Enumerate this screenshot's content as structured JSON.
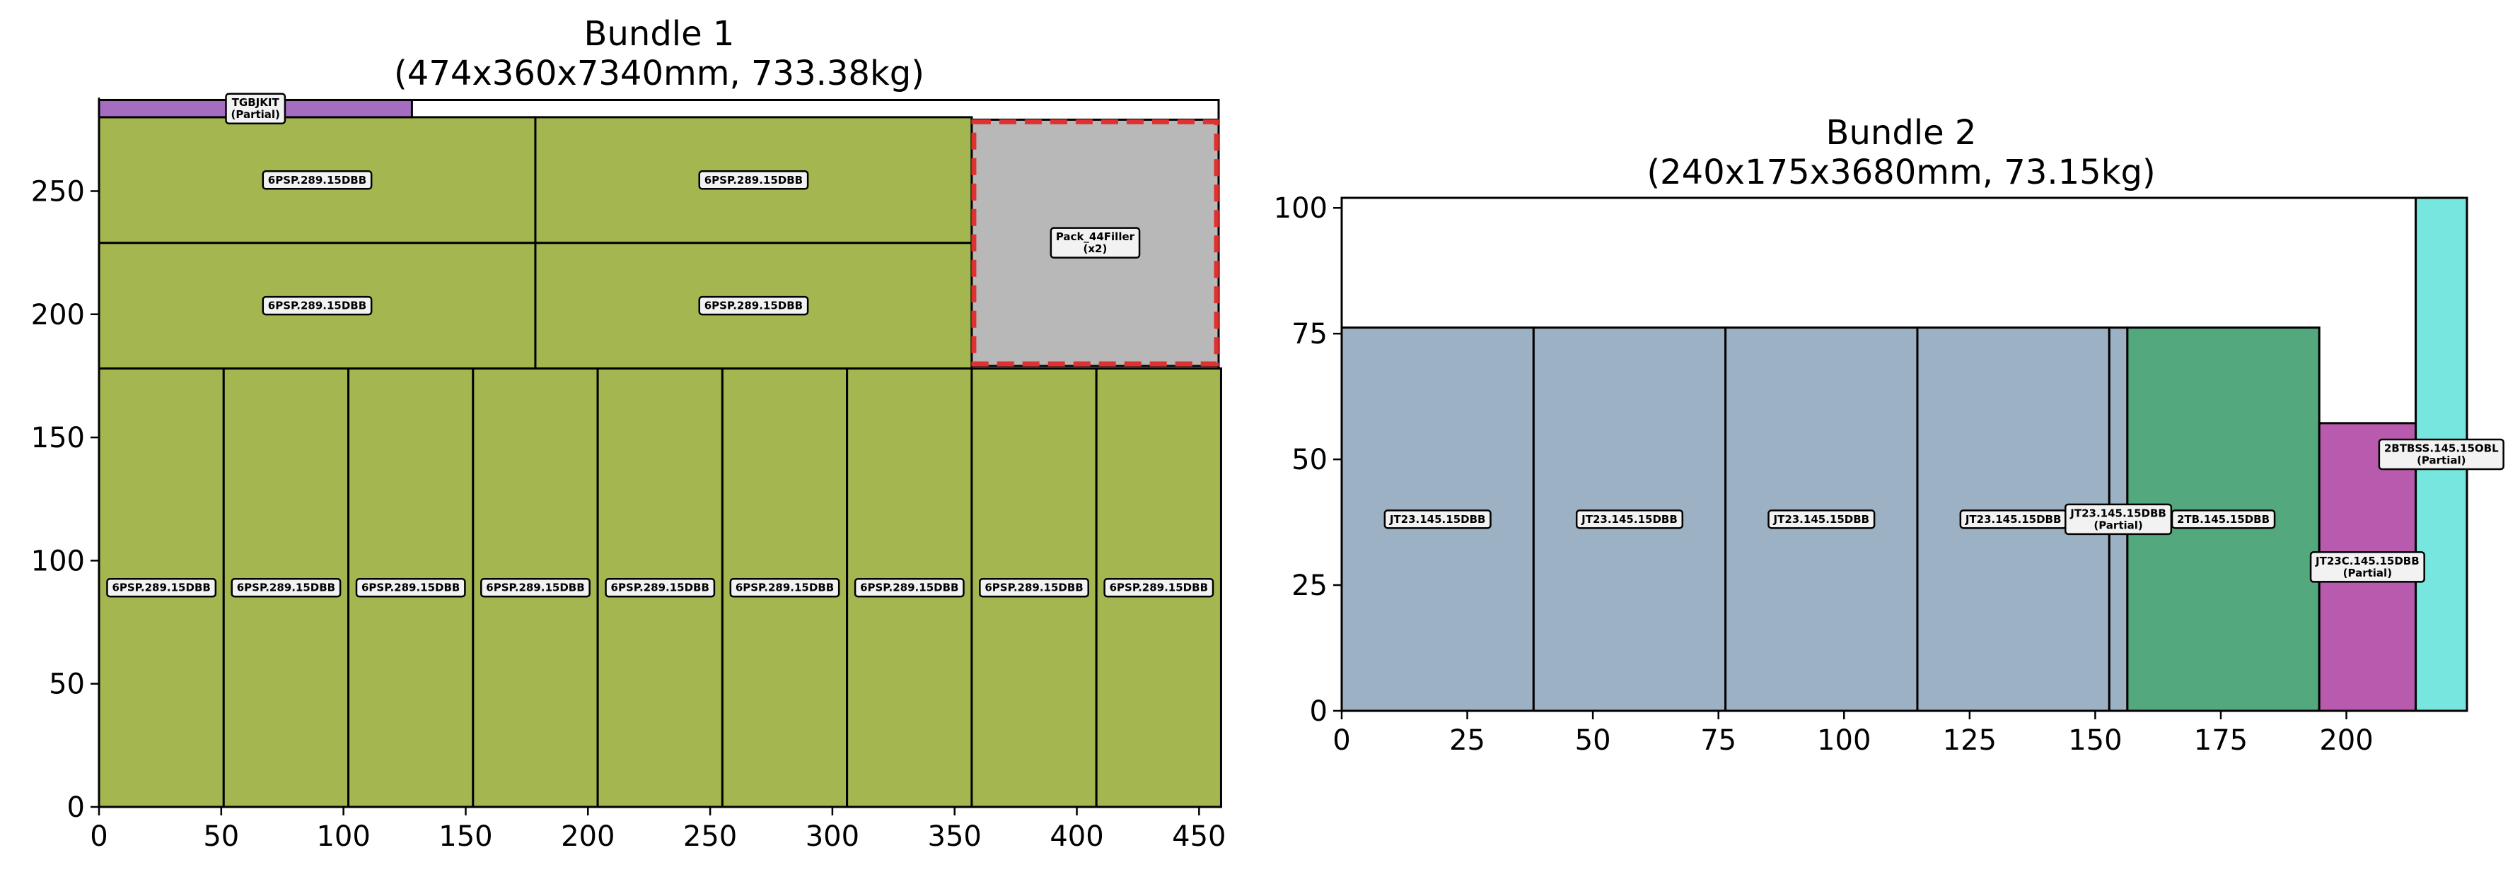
{
  "chart_data": [
    {
      "type": "packing-layout",
      "title_line1": "Bundle 1",
      "title_line2": "(474x360x7340mm, 733.38kg)",
      "xlim": [
        0,
        458
      ],
      "ylim": [
        0,
        288
      ],
      "container": [
        0,
        0,
        458,
        287
      ],
      "xticks": [
        0,
        50,
        100,
        150,
        200,
        250,
        300,
        350,
        400,
        450
      ],
      "yticks": [
        0,
        50,
        100,
        150,
        200,
        250
      ],
      "items": [
        {
          "x": 0,
          "y": 0,
          "w": 51,
          "h": 178,
          "color": "#a4b650",
          "label": "6PSP.289.15DBB",
          "partial": ""
        },
        {
          "x": 51,
          "y": 0,
          "w": 51,
          "h": 178,
          "color": "#a4b650",
          "label": "6PSP.289.15DBB",
          "partial": ""
        },
        {
          "x": 102,
          "y": 0,
          "w": 51,
          "h": 178,
          "color": "#a4b650",
          "label": "6PSP.289.15DBB",
          "partial": ""
        },
        {
          "x": 153,
          "y": 0,
          "w": 51,
          "h": 178,
          "color": "#a4b650",
          "label": "6PSP.289.15DBB",
          "partial": ""
        },
        {
          "x": 204,
          "y": 0,
          "w": 51,
          "h": 178,
          "color": "#a4b650",
          "label": "6PSP.289.15DBB",
          "partial": ""
        },
        {
          "x": 255,
          "y": 0,
          "w": 51,
          "h": 178,
          "color": "#a4b650",
          "label": "6PSP.289.15DBB",
          "partial": ""
        },
        {
          "x": 306,
          "y": 0,
          "w": 51,
          "h": 178,
          "color": "#a4b650",
          "label": "6PSP.289.15DBB",
          "partial": ""
        },
        {
          "x": 357,
          "y": 0,
          "w": 51,
          "h": 178,
          "color": "#a4b650",
          "label": "6PSP.289.15DBB",
          "partial": ""
        },
        {
          "x": 408,
          "y": 0,
          "w": 51,
          "h": 178,
          "color": "#a4b650",
          "label": "6PSP.289.15DBB",
          "partial": ""
        },
        {
          "x": 0,
          "y": 178,
          "w": 178.5,
          "h": 51,
          "color": "#a4b650",
          "label": "6PSP.289.15DBB",
          "partial": ""
        },
        {
          "x": 178.5,
          "y": 178,
          "w": 178.5,
          "h": 51,
          "color": "#a4b650",
          "label": "6PSP.289.15DBB",
          "partial": ""
        },
        {
          "x": 0,
          "y": 229,
          "w": 178.5,
          "h": 51,
          "color": "#a4b650",
          "label": "6PSP.289.15DBB",
          "partial": ""
        },
        {
          "x": 178.5,
          "y": 229,
          "w": 178.5,
          "h": 51,
          "color": "#a4b650",
          "label": "6PSP.289.15DBB",
          "partial": ""
        },
        {
          "x": 357,
          "y": 179,
          "w": 101,
          "h": 100,
          "color": "#b8b8b8",
          "label": "Pack_44Filler",
          "partial": "(x2)",
          "dashed": true
        },
        {
          "x": 0,
          "y": 280,
          "w": 128,
          "h": 7,
          "color": "#a56cc1",
          "label": "TGBJKIT",
          "partial": "(Partial)"
        }
      ]
    },
    {
      "type": "packing-layout",
      "title_line1": "Bundle 2",
      "title_line2": "(240x175x3680mm, 73.15kg)",
      "xlim": [
        0,
        224
      ],
      "ylim": [
        0,
        102
      ],
      "container": [
        0,
        0,
        224,
        102
      ],
      "xticks": [
        0,
        25,
        50,
        75,
        100,
        125,
        150,
        175,
        200
      ],
      "yticks": [
        0,
        25,
        50,
        75,
        100
      ],
      "items": [
        {
          "x": 0,
          "y": 0,
          "w": 38.2,
          "h": 76.2,
          "color": "#9db1c4",
          "label": "JT23.145.15DBB",
          "partial": ""
        },
        {
          "x": 38.2,
          "y": 0,
          "w": 38.2,
          "h": 76.2,
          "color": "#9db1c4",
          "label": "JT23.145.15DBB",
          "partial": ""
        },
        {
          "x": 76.4,
          "y": 0,
          "w": 38.2,
          "h": 76.2,
          "color": "#9db1c4",
          "label": "JT23.145.15DBB",
          "partial": ""
        },
        {
          "x": 114.6,
          "y": 0,
          "w": 38.2,
          "h": 76.2,
          "color": "#9db1c4",
          "label": "JT23.145.15DBB",
          "partial": ""
        },
        {
          "x": 152.8,
          "y": 0,
          "w": 3.6,
          "h": 76.2,
          "color": "#9db1c4",
          "label": "JT23.145.15DBB",
          "partial": "(Partial)"
        },
        {
          "x": 156.4,
          "y": 0,
          "w": 38.2,
          "h": 76.2,
          "color": "#54a87d",
          "label": "2TB.145.15DBB",
          "partial": ""
        },
        {
          "x": 194.6,
          "y": 0,
          "w": 19.2,
          "h": 57.2,
          "color": "#b85aad",
          "label": "JT23C.145.15DBB",
          "partial": "(Partial)"
        },
        {
          "x": 213.8,
          "y": 0,
          "w": 10.2,
          "h": 102,
          "color": "#76e6de",
          "label": "2BTBSS.145.15OBL",
          "partial": "(Partial)"
        }
      ]
    }
  ]
}
